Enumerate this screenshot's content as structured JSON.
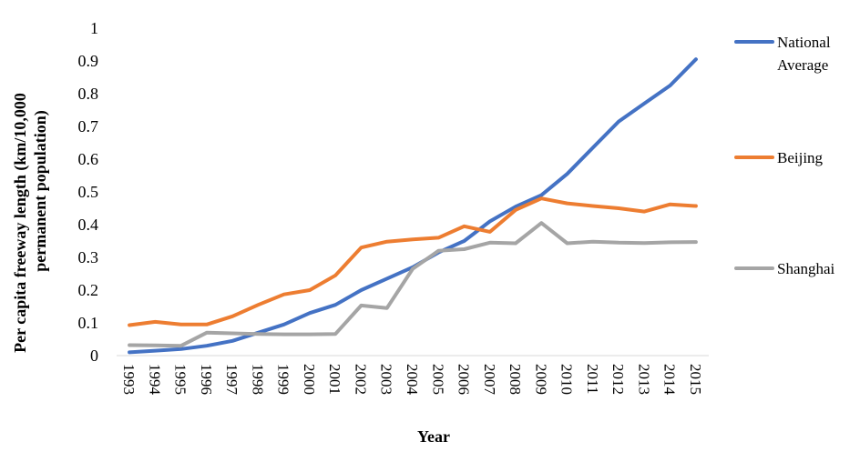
{
  "chart_data": {
    "type": "line",
    "title": "",
    "xlabel": "Year",
    "ylabel_lines": [
      "Per capita freeway length (km/10,000",
      "permanent population)"
    ],
    "ylim": [
      0,
      1
    ],
    "yticks": [
      "0",
      "0.1",
      "0.2",
      "0.3",
      "0.4",
      "0.5",
      "0.6",
      "0.7",
      "0.8",
      "0.9",
      "1"
    ],
    "grid": false,
    "legend_position": "right",
    "x": [
      "1993",
      "1994",
      "1995",
      "1996",
      "1997",
      "1998",
      "1999",
      "2000",
      "2001",
      "2002",
      "2003",
      "2004",
      "2005",
      "2006",
      "2007",
      "2008",
      "2009",
      "2010",
      "2011",
      "2012",
      "2013",
      "2014",
      "2015"
    ],
    "series": [
      {
        "name_lines": [
          "National",
          "Average"
        ],
        "color": "#4472C4",
        "values": [
          0.01,
          0.015,
          0.02,
          0.03,
          0.045,
          0.07,
          0.095,
          0.13,
          0.155,
          0.2,
          0.235,
          0.27,
          0.315,
          0.35,
          0.41,
          0.455,
          0.49,
          0.555,
          0.635,
          0.715,
          0.77,
          0.825,
          0.905
        ]
      },
      {
        "name_lines": [
          "Beijing"
        ],
        "color": "#ED7D31",
        "values": [
          0.093,
          0.103,
          0.095,
          0.095,
          0.12,
          0.155,
          0.187,
          0.2,
          0.245,
          0.33,
          0.348,
          0.355,
          0.36,
          0.395,
          0.378,
          0.445,
          0.48,
          0.465,
          0.457,
          0.45,
          0.44,
          0.462,
          0.457
        ]
      },
      {
        "name_lines": [
          "Shanghai"
        ],
        "color": "#A5A5A5",
        "values": [
          0.032,
          0.031,
          0.03,
          0.07,
          0.068,
          0.066,
          0.065,
          0.065,
          0.066,
          0.153,
          0.145,
          0.265,
          0.32,
          0.325,
          0.345,
          0.343,
          0.405,
          0.343,
          0.348,
          0.345,
          0.344,
          0.346,
          0.347
        ]
      }
    ]
  }
}
